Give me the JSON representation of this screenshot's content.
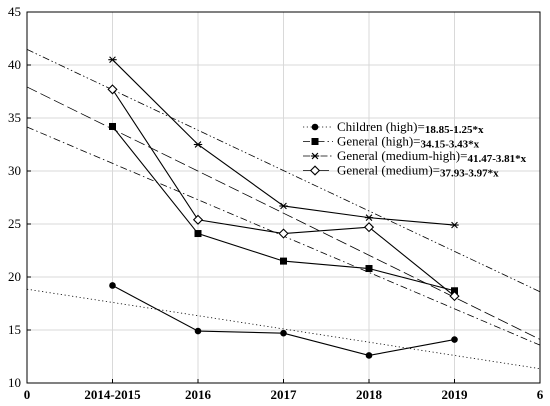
{
  "chart_data": {
    "type": "line",
    "x_tick_labels": [
      "0",
      "2014-2015",
      "2016",
      "2017",
      "2018",
      "2019",
      "6"
    ],
    "x_positions": [
      1,
      2,
      3,
      4,
      5
    ],
    "xlim": [
      0,
      6
    ],
    "ylim": [
      10,
      45
    ],
    "y_ticks": [
      10,
      15,
      20,
      25,
      30,
      35,
      40,
      45
    ],
    "grid": true,
    "legend_position": "center-right",
    "series": [
      {
        "name": "Children (high)",
        "equation": "18.85-1.25*x",
        "intercept": 18.85,
        "slope": -1.25,
        "marker": "filled-circle",
        "trend_style": "dotted",
        "values": [
          19.2,
          14.9,
          14.7,
          12.6,
          14.1
        ]
      },
      {
        "name": "General (high)",
        "equation": "34.15-3.43*x",
        "intercept": 34.15,
        "slope": -3.43,
        "marker": "filled-square",
        "trend_style": "dash-dot",
        "values": [
          34.2,
          24.1,
          21.5,
          20.8,
          18.7
        ]
      },
      {
        "name": "General (medium-high)",
        "equation": "41.47-3.81*x",
        "intercept": 41.47,
        "slope": -3.81,
        "marker": "asterisk",
        "trend_style": "dash-dot-dot",
        "values": [
          40.5,
          32.5,
          26.7,
          25.6,
          24.9
        ]
      },
      {
        "name": "General (medium)",
        "equation": "37.93-3.97*x",
        "intercept": 37.93,
        "slope": -3.97,
        "marker": "open-diamond",
        "trend_style": "long-dash",
        "values": [
          37.7,
          25.4,
          24.1,
          24.7,
          18.2
        ]
      }
    ]
  }
}
